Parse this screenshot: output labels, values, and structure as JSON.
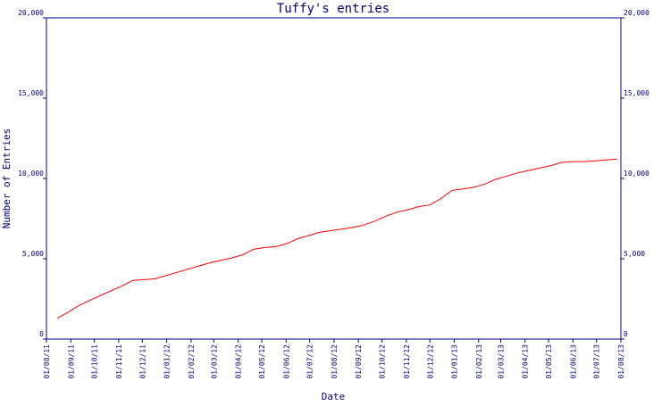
{
  "chart_data": {
    "type": "line",
    "title": "Tuffy's entries",
    "xlabel": "Date",
    "ylabel": "Number of Entries",
    "ylim": [
      0,
      20000
    ],
    "xlim": [
      "2011-08-01",
      "2013-08-01"
    ],
    "y_ticks": [
      "0",
      "5,000",
      "10,000",
      "15,000",
      "20,000"
    ],
    "y_tick_values": [
      0,
      5000,
      10000,
      15000,
      20000
    ],
    "x_ticks": [
      "01/08/11",
      "01/09/11",
      "01/10/11",
      "01/11/11",
      "01/12/11",
      "01/01/12",
      "01/02/12",
      "01/03/12",
      "01/04/12",
      "01/05/12",
      "01/06/12",
      "01/07/12",
      "01/08/12",
      "01/09/12",
      "01/10/12",
      "01/11/12",
      "01/12/12",
      "01/01/13",
      "01/02/13",
      "01/03/13",
      "01/04/13",
      "01/05/13",
      "01/06/13",
      "01/07/13",
      "01/08/13"
    ],
    "grid": false,
    "colors": {
      "axis": "#000080",
      "series": "#ff0000"
    },
    "series": [
      {
        "x": [
          "2011-08-15",
          "2011-08-28",
          "2011-09-10",
          "2011-09-24",
          "2011-10-08",
          "2011-10-22",
          "2011-11-05",
          "2011-11-19",
          "2011-12-03",
          "2011-12-17",
          "2011-12-31",
          "2012-01-14",
          "2012-01-28",
          "2012-02-11",
          "2012-02-25",
          "2012-03-10",
          "2012-03-24",
          "2012-04-07",
          "2012-04-21",
          "2012-05-05",
          "2012-05-19",
          "2012-06-02",
          "2012-06-16",
          "2012-06-30",
          "2012-07-14",
          "2012-07-28",
          "2012-08-11",
          "2012-08-25",
          "2012-09-08",
          "2012-09-22",
          "2012-10-06",
          "2012-10-20",
          "2012-11-03",
          "2012-11-17",
          "2012-12-01",
          "2012-12-15",
          "2012-12-29",
          "2013-01-12",
          "2013-01-26",
          "2013-02-09",
          "2013-02-23",
          "2013-03-09",
          "2013-03-23",
          "2013-04-06",
          "2013-04-20",
          "2013-05-04",
          "2013-05-18",
          "2013-06-01",
          "2013-06-15",
          "2013-06-29",
          "2013-07-13",
          "2013-07-27"
        ],
        "values": [
          1300,
          1650,
          2050,
          2380,
          2700,
          3000,
          3300,
          3650,
          3700,
          3750,
          3950,
          4150,
          4350,
          4550,
          4750,
          4900,
          5050,
          5250,
          5600,
          5700,
          5750,
          5950,
          6250,
          6450,
          6650,
          6750,
          6850,
          6950,
          7100,
          7350,
          7650,
          7900,
          8050,
          8250,
          8350,
          8750,
          9250,
          9350,
          9450,
          9650,
          9950,
          10150,
          10350,
          10500,
          10650,
          10800,
          11000,
          11050,
          11050,
          11100,
          11150,
          11200
        ]
      }
    ]
  }
}
